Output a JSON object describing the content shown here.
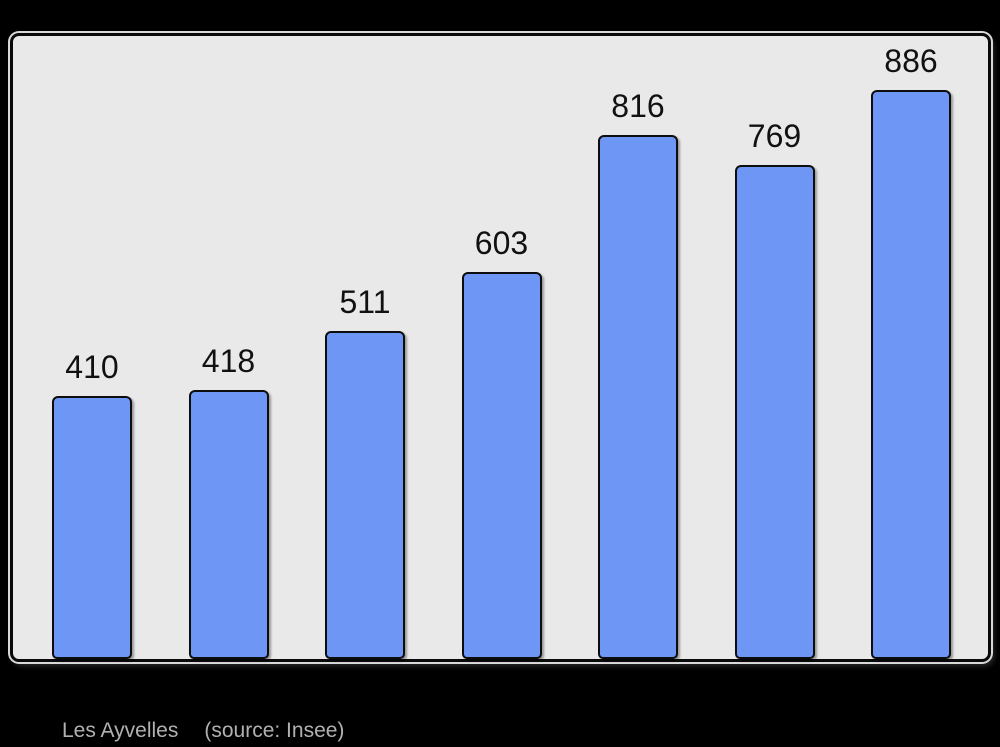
{
  "caption": {
    "title": "Les Ayvelles",
    "source": "(source: Insee)"
  },
  "chart_data": {
    "type": "bar",
    "values": [
      410,
      418,
      511,
      603,
      816,
      769,
      886
    ],
    "bar_labels": [
      "410",
      "418",
      "511",
      "603",
      "816",
      "769",
      "886"
    ],
    "categories": [
      "",
      "",
      "",
      "",
      "",
      "",
      ""
    ],
    "title": "Les Ayvelles",
    "subtitle": "(source: Insee)",
    "xlabel": "",
    "ylabel": "",
    "ylim": [
      0,
      975
    ],
    "grid": false,
    "legend_position": "none",
    "colors": {
      "page_background": "#000000",
      "plot_background": "#e9e9e9",
      "plot_border": "#0a0a0a",
      "bar_fill": "#6e96f4",
      "bar_border": "#0d0d0d",
      "value_label": "#111111",
      "caption_text": "#b1b1b1"
    }
  }
}
